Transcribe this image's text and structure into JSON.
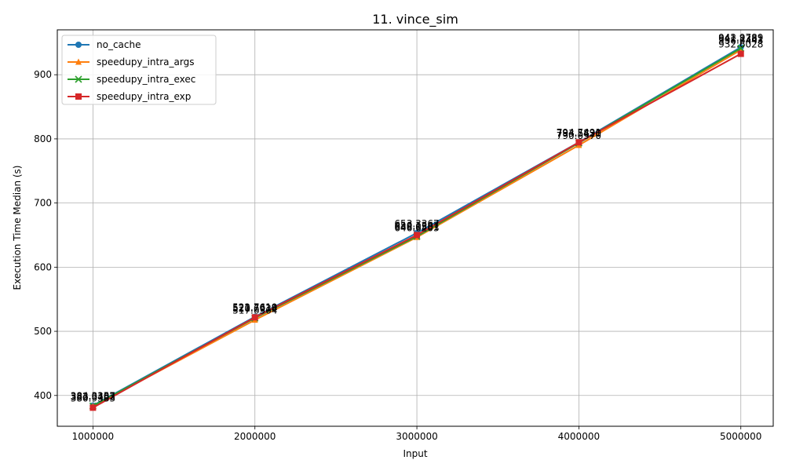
{
  "chart_data": {
    "type": "line",
    "title": "11. vince_sim",
    "xlabel": "Input",
    "ylabel": "Execution Time Median (s)",
    "x": [
      1000000,
      2000000,
      3000000,
      4000000,
      5000000
    ],
    "x_tick_labels": [
      "1000000",
      "2000000",
      "3000000",
      "4000000",
      "5000000"
    ],
    "xlim": [
      780000,
      5200000
    ],
    "ylim": [
      352,
      970
    ],
    "yticks": [
      400,
      500,
      600,
      700,
      800,
      900
    ],
    "grid": true,
    "legend_position": "top-left",
    "series": [
      {
        "name": "no_cache",
        "color": "#1f77b4",
        "marker": "circle",
        "values": [
          384.3357,
          522.7619,
          653.3367,
          794.7491,
          942.9789
        ],
        "labels": [
          "384.3357",
          "522.7619",
          "653.3367",
          "794.7491",
          "942.9789"
        ]
      },
      {
        "name": "speedupy_intra_args",
        "color": "#ff7f0e",
        "marker": "triangle",
        "values": [
          382.9403,
          517.6564,
          646.6203,
          790.097,
          938.6443
        ],
        "labels": [
          "382.9403",
          "517.6564",
          "646.6203",
          "790.0970",
          "938.6443"
        ]
      },
      {
        "name": "speedupy_intra_exec",
        "color": "#2ca02c",
        "marker": "x",
        "values": [
          383.5182,
          520.6934,
          648.0581,
          793.542,
          941.2381
        ],
        "labels": [
          "383.5182",
          "520.6934",
          "648.0581",
          "793.5420",
          "941.2381"
        ]
      },
      {
        "name": "speedupy_intra_exp",
        "color": "#d62728",
        "marker": "square",
        "values": [
          380.9383,
          521.761,
          650.1267,
          794.583,
          932.6028
        ],
        "labels": [
          "380.9383",
          "521.7610",
          "650.1267",
          "794.5830",
          "932.6028"
        ]
      }
    ]
  }
}
